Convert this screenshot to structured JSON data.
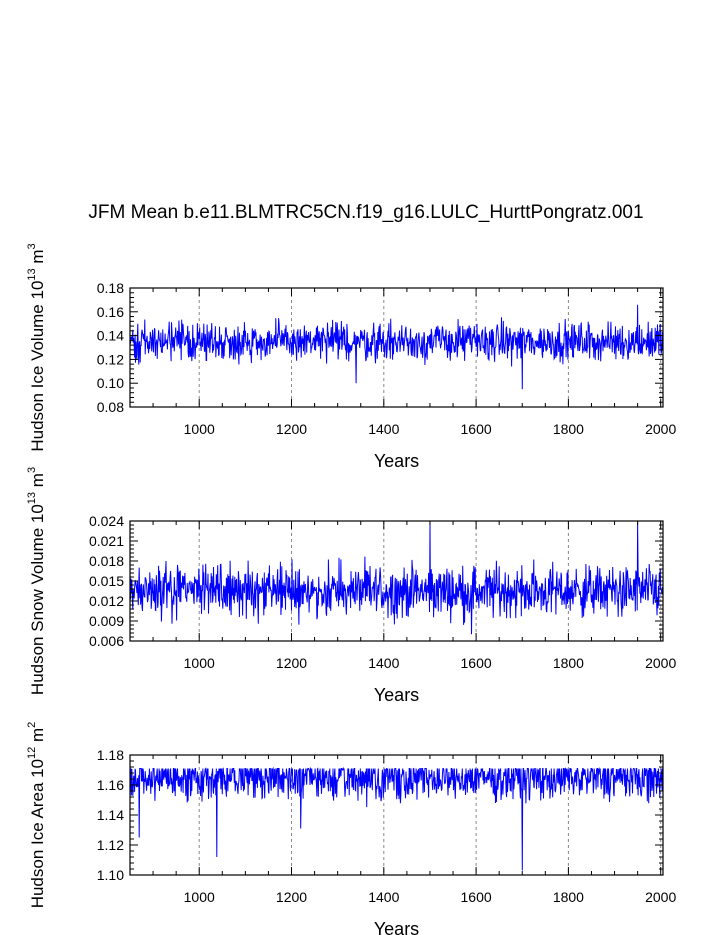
{
  "figure": {
    "title": "JFM Mean b.e11.BLMTRC5CN.f19_g16.LULC_HurttPongratz.001"
  },
  "colors": {
    "line": "#0000ff",
    "axis": "#000000",
    "grid": "#888888"
  },
  "chart_data": [
    {
      "type": "line",
      "series": [
        {
          "name": ""
        }
      ],
      "xlabel": "Years",
      "ylabel": "Hudson Ice Volume 10",
      "ylabel_exp": "13",
      "ylabel_unit": " m",
      "ylabel_unit_exp": "3",
      "xlim": [
        850,
        2005
      ],
      "ylim": [
        0.08,
        0.18
      ],
      "xticks": [
        "1000",
        "1200",
        "1400",
        "1600",
        "1800",
        "2000"
      ],
      "yticks": [
        "0.08",
        "0.10",
        "0.12",
        "0.14",
        "0.16",
        "0.18"
      ],
      "vertical_grid": "dashed at x ticks",
      "x": [
        850,
        2005
      ],
      "y_mean": 0.135,
      "y_range_observed": [
        0.095,
        0.166
      ],
      "notable_points": [
        {
          "x": 1700,
          "y": 0.095
        },
        {
          "x": 1340,
          "y": 0.1
        },
        {
          "x": 1950,
          "y": 0.166
        }
      ]
    },
    {
      "type": "line",
      "series": [
        {
          "name": ""
        }
      ],
      "xlabel": "Years",
      "ylabel": "Hudson Snow Volume 10",
      "ylabel_exp": "13",
      "ylabel_unit": " m",
      "ylabel_unit_exp": "3",
      "xlim": [
        850,
        2005
      ],
      "ylim": [
        0.006,
        0.024
      ],
      "xticks": [
        "1000",
        "1200",
        "1400",
        "1600",
        "1800",
        "2000"
      ],
      "yticks": [
        "0.006",
        "0.009",
        "0.012",
        "0.015",
        "0.018",
        "0.021",
        "0.024"
      ],
      "vertical_grid": "dashed at x ticks",
      "x": [
        850,
        2005
      ],
      "y_mean": 0.0135,
      "y_range_observed": [
        0.007,
        0.024
      ],
      "notable_points": [
        {
          "x": 1500,
          "y": 0.024
        },
        {
          "x": 1950,
          "y": 0.024
        },
        {
          "x": 1590,
          "y": 0.007
        }
      ]
    },
    {
      "type": "line",
      "series": [
        {
          "name": ""
        }
      ],
      "xlabel": "Years",
      "ylabel": "Hudson Ice Area 10",
      "ylabel_exp": "12",
      "ylabel_unit": " m",
      "ylabel_unit_exp": "2",
      "xlim": [
        850,
        2005
      ],
      "ylim": [
        1.1,
        1.18
      ],
      "xticks": [
        "1000",
        "1200",
        "1400",
        "1600",
        "1800",
        "2000"
      ],
      "yticks": [
        "1.10",
        "1.12",
        "1.14",
        "1.16",
        "1.18"
      ],
      "vertical_grid": "dashed at x ticks",
      "x": [
        850,
        2005
      ],
      "y_mean": 1.165,
      "y_range_observed": [
        1.103,
        1.171
      ],
      "notable_points": [
        {
          "x": 1700,
          "y": 1.103
        },
        {
          "x": 1038,
          "y": 1.112
        },
        {
          "x": 870,
          "y": 1.125
        },
        {
          "x": 1220,
          "y": 1.131
        }
      ]
    }
  ]
}
